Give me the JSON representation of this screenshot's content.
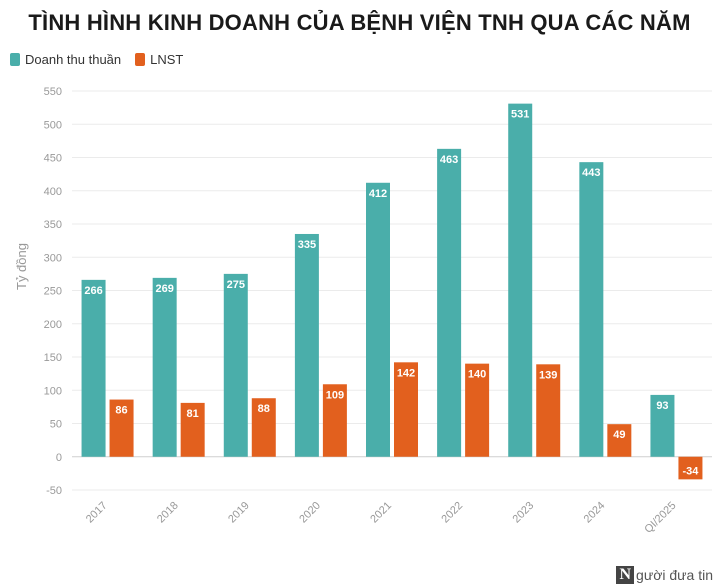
{
  "chart_data": {
    "type": "bar",
    "title": "TÌNH HÌNH KINH DOANH CỦA BỆNH VIỆN TNH QUA CÁC NĂM",
    "ylabel": "Tỷ đồng",
    "xlabel": "",
    "ylim": [
      -50,
      550
    ],
    "yticks": [
      -50,
      0,
      50,
      100,
      150,
      200,
      250,
      300,
      350,
      400,
      450,
      500,
      550
    ],
    "categories": [
      "2017",
      "2018",
      "2019",
      "2020",
      "2021",
      "2022",
      "2023",
      "2024",
      "QI/2025"
    ],
    "series": [
      {
        "name": "Doanh thu thuần",
        "color": "#4aaeaa",
        "values": [
          266,
          269,
          275,
          335,
          412,
          463,
          531,
          443,
          93
        ]
      },
      {
        "name": "LNST",
        "color": "#e2601e",
        "values": [
          86,
          81,
          88,
          109,
          142,
          140,
          139,
          49,
          -34
        ]
      }
    ],
    "legend_position": "top-left",
    "grid": true
  },
  "watermark": {
    "logo": "N",
    "text": "gười đưa tin"
  }
}
